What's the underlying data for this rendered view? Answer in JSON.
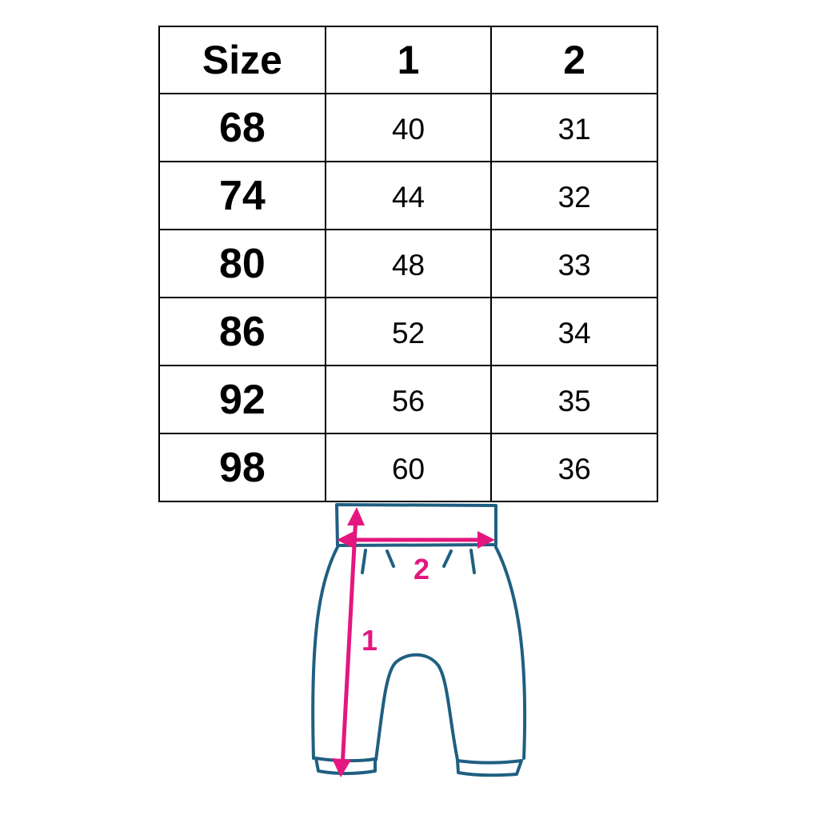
{
  "table": {
    "headers": [
      "Size",
      "1",
      "2"
    ],
    "rows": [
      [
        "68",
        "40",
        "31"
      ],
      [
        "74",
        "44",
        "32"
      ],
      [
        "80",
        "48",
        "33"
      ],
      [
        "86",
        "52",
        "34"
      ],
      [
        "92",
        "56",
        "35"
      ],
      [
        "98",
        "60",
        "36"
      ]
    ]
  },
  "diagram": {
    "label_length": "1",
    "label_width": "2",
    "outline_color": "#1f5f82",
    "measure_color": "#e3177f"
  }
}
